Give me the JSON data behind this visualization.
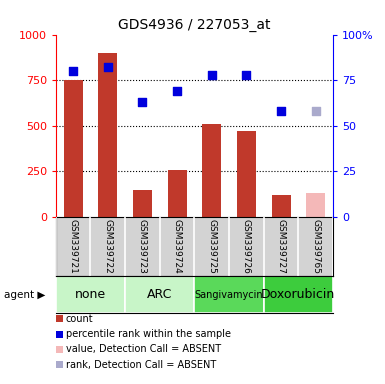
{
  "title": "GDS4936 / 227053_at",
  "samples": [
    "GSM339721",
    "GSM339722",
    "GSM339723",
    "GSM339724",
    "GSM339725",
    "GSM339726",
    "GSM339727",
    "GSM339765"
  ],
  "bar_values": [
    750,
    900,
    150,
    260,
    510,
    470,
    120,
    null
  ],
  "bar_absent_values": [
    null,
    null,
    null,
    null,
    null,
    null,
    null,
    130
  ],
  "bar_color": "#c0392b",
  "bar_absent_color": "#f4b8b8",
  "dot_values": [
    800,
    820,
    630,
    690,
    780,
    780,
    580,
    null
  ],
  "dot_absent_values": [
    null,
    null,
    null,
    null,
    null,
    null,
    null,
    580
  ],
  "dot_color": "#0000dd",
  "dot_absent_color": "#aaaacc",
  "ylim_left": [
    0,
    1000
  ],
  "ylim_right": [
    0,
    100
  ],
  "yticks_left": [
    0,
    250,
    500,
    750,
    1000
  ],
  "ytick_labels_left": [
    "0",
    "250",
    "500",
    "750",
    "1000"
  ],
  "yticks_right": [
    0,
    25,
    50,
    75,
    100
  ],
  "ytick_labels_right": [
    "0",
    "25",
    "50",
    "75",
    "100%"
  ],
  "hgrid_vals": [
    250,
    500,
    750
  ],
  "agent_groups": [
    {
      "label": "none",
      "start": 0,
      "end": 2,
      "color": "#c8f5c8",
      "fontsize": 9
    },
    {
      "label": "ARC",
      "start": 2,
      "end": 4,
      "color": "#c8f5c8",
      "fontsize": 9
    },
    {
      "label": "Sangivamycin",
      "start": 4,
      "end": 6,
      "color": "#5ad95a",
      "fontsize": 7
    },
    {
      "label": "Doxorubicin",
      "start": 6,
      "end": 8,
      "color": "#3dcc3d",
      "fontsize": 9
    }
  ],
  "sample_bg": "#d3d3d3",
  "legend_items": [
    {
      "label": "count",
      "color": "#c0392b"
    },
    {
      "label": "percentile rank within the sample",
      "color": "#0000dd"
    },
    {
      "label": "value, Detection Call = ABSENT",
      "color": "#f4b8b8"
    },
    {
      "label": "rank, Detection Call = ABSENT",
      "color": "#aaaacc"
    }
  ],
  "title_fontsize": 10,
  "tick_fontsize": 8,
  "sample_fontsize": 6.5,
  "legend_fontsize": 7
}
